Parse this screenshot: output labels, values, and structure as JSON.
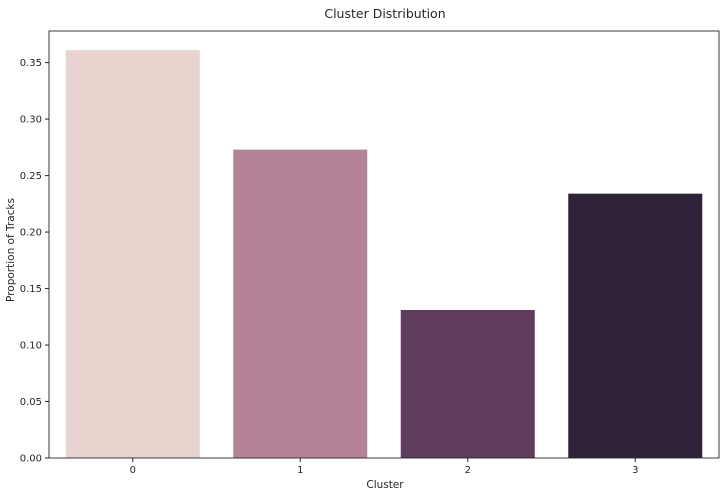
{
  "chart_data": {
    "type": "bar",
    "title": "Cluster Distribution",
    "xlabel": "Cluster",
    "ylabel": "Proportion of Tracks",
    "categories": [
      "0",
      "1",
      "2",
      "3"
    ],
    "values": [
      0.361,
      0.273,
      0.131,
      0.234
    ],
    "colors": [
      "#e8d3ce",
      "#b48398",
      "#5e3b5f",
      "#2f2339"
    ],
    "ylim": [
      0,
      0.378
    ],
    "yticks": [
      0.0,
      0.05,
      0.1,
      0.15,
      0.2,
      0.25,
      0.3,
      0.35
    ],
    "ytick_labels": [
      "0.00",
      "0.05",
      "0.10",
      "0.15",
      "0.20",
      "0.25",
      "0.30",
      "0.35"
    ],
    "grid": false,
    "legend": "none"
  }
}
